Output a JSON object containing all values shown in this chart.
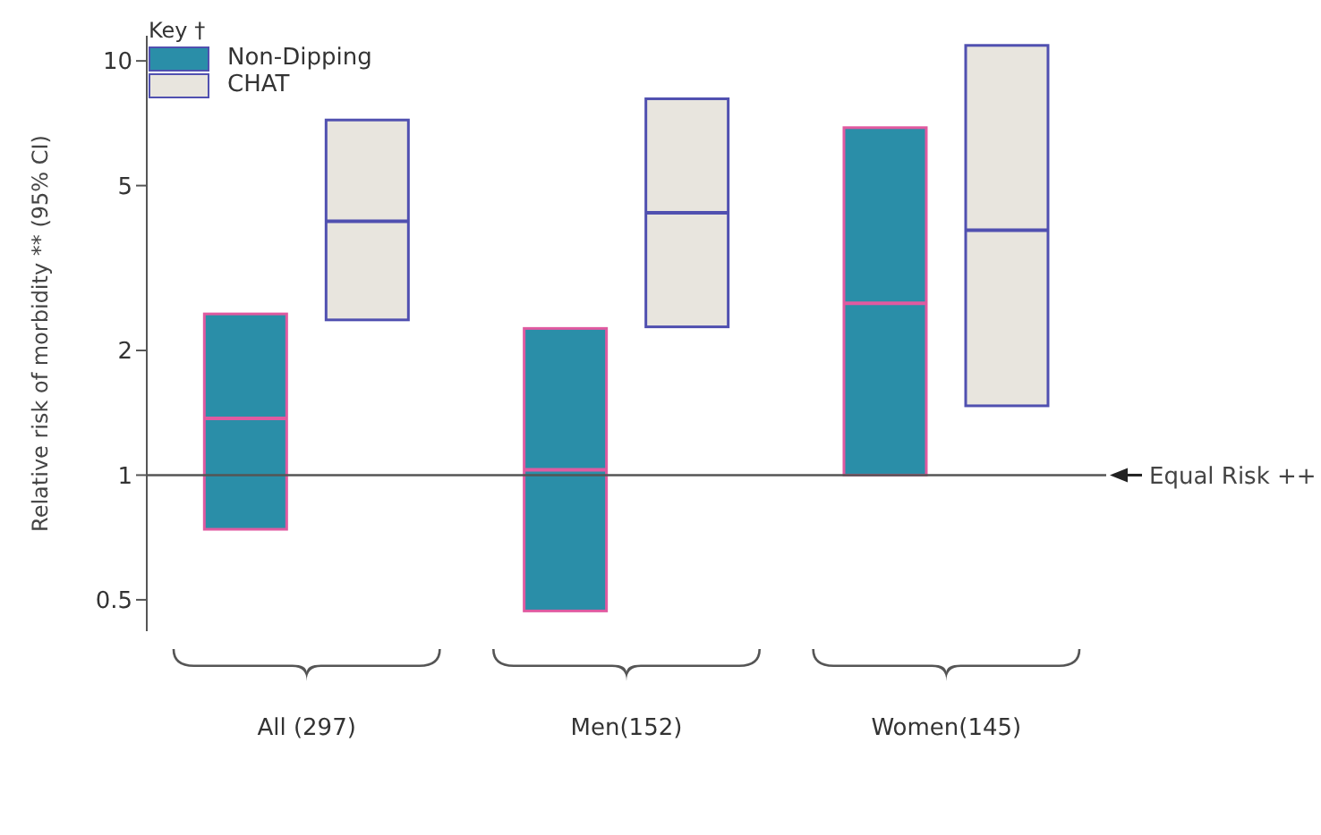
{
  "chart_data": {
    "type": "box",
    "ylabel": "Relative risk of morbidity ** (95% CI)",
    "legend_title": "Key †",
    "categories": [
      "All (297)",
      "Men(152)",
      "Women(145)"
    ],
    "series": [
      {
        "name": "Non-Dipping",
        "color": "#2a8ea8",
        "boxes": [
          {
            "low": 0.74,
            "q1": 0.74,
            "median": 1.37,
            "q3": 2.45,
            "high": 2.45
          },
          {
            "low": 0.47,
            "q1": 0.47,
            "median": 1.03,
            "q3": 2.26,
            "high": 2.26
          },
          {
            "low": 1.0,
            "q1": 1.0,
            "median": 2.6,
            "q3": 6.9,
            "high": 6.9
          }
        ]
      },
      {
        "name": "CHAT",
        "color": "#e8e5de",
        "boxes": [
          {
            "low": 2.37,
            "q1": 2.37,
            "median": 4.1,
            "q3": 7.2,
            "high": 7.2
          },
          {
            "low": 2.28,
            "q1": 2.28,
            "median": 4.3,
            "q3": 8.1,
            "high": 8.1
          },
          {
            "low": 1.47,
            "q1": 1.47,
            "median": 3.9,
            "q3": 10.9,
            "high": 10.9
          }
        ]
      }
    ],
    "log": "y",
    "ylim": [
      0.42,
      11.5
    ],
    "yticks": [
      0.5,
      1,
      2,
      5,
      10
    ],
    "ref_lines": [
      {
        "axis": "y",
        "value": 1,
        "label": "Equal Risk ++",
        "color": "#555555"
      }
    ],
    "legend": "top left"
  }
}
